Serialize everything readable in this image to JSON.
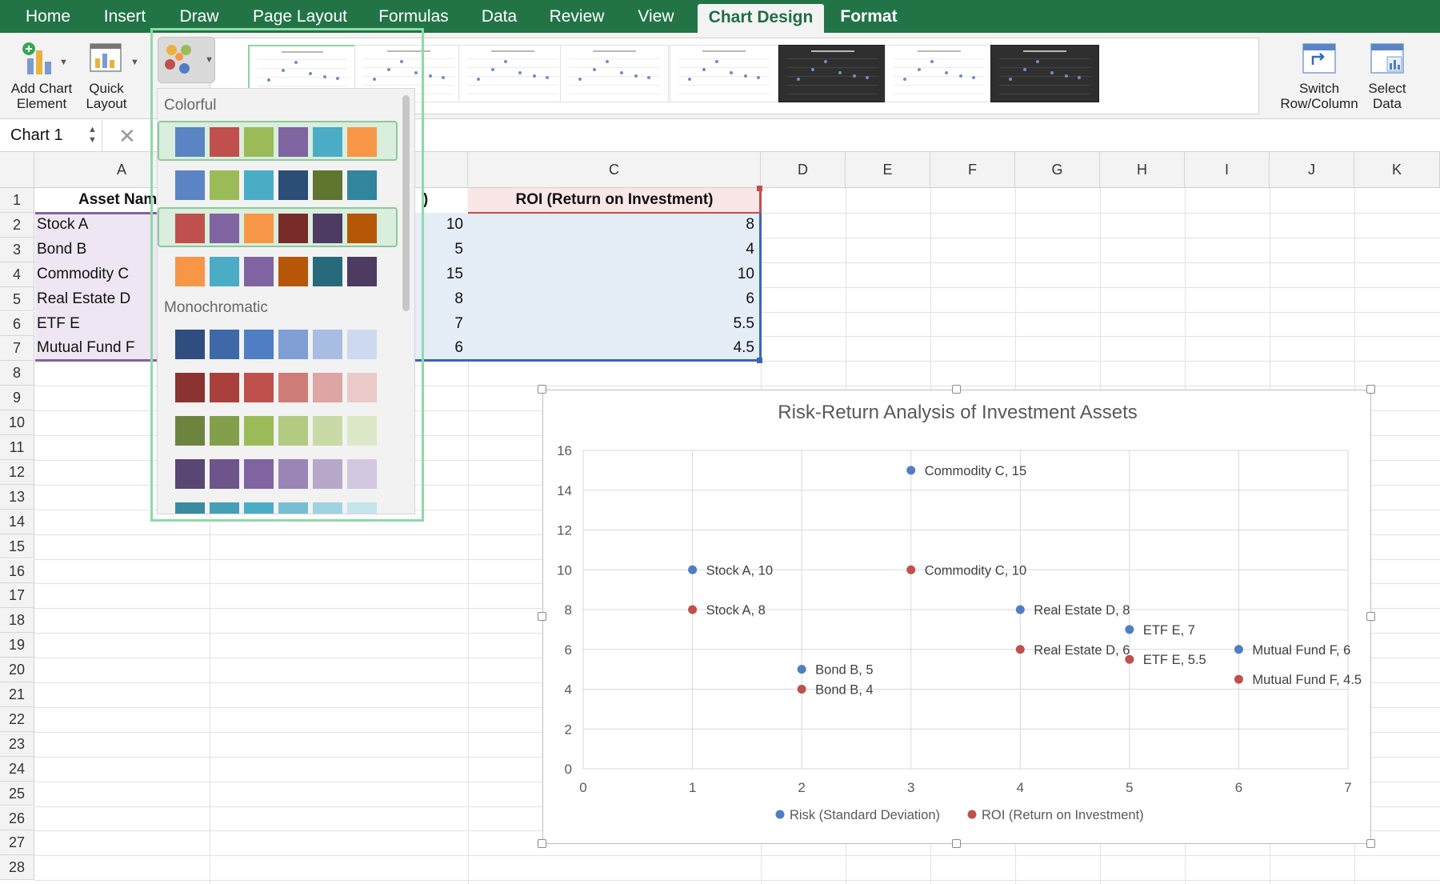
{
  "ribbon": {
    "tabs": [
      {
        "label": "Home",
        "left": 0,
        "width": 120
      },
      {
        "label": "Insert",
        "left": 120,
        "width": 72
      },
      {
        "label": "Draw",
        "left": 211,
        "width": 76
      },
      {
        "label": "Page Layout",
        "left": 305,
        "width": 140
      },
      {
        "label": "Formulas",
        "left": 466,
        "width": 102
      },
      {
        "label": "Data",
        "left": 592,
        "width": 64
      },
      {
        "label": "Review",
        "left": 680,
        "width": 82
      },
      {
        "label": "View",
        "left": 785,
        "width": 70
      }
    ],
    "active_tab": "Chart Design",
    "format_tab": "Format",
    "add_chart_element": "Add Chart Element",
    "quick_layout": "Quick Layout",
    "switch_row_column": "Switch Row/Column",
    "select_data": "Select Data"
  },
  "formula_bar": {
    "name_box": "Chart 1",
    "cancel": "✕"
  },
  "sheet": {
    "columns": [
      "A",
      "C",
      "D",
      "E",
      "F",
      "G",
      "H",
      "I",
      "J",
      "K"
    ],
    "rows": [
      "1",
      "2",
      "3",
      "4",
      "5",
      "6",
      "7",
      "8",
      "9",
      "10",
      "11",
      "12",
      "13",
      "14",
      "15",
      "16",
      "17",
      "18",
      "19",
      "20",
      "21",
      "22",
      "23",
      "24",
      "25",
      "26",
      "27",
      "28"
    ],
    "header_a": "Asset Nam",
    "header_b_partial": ")",
    "header_c": "ROI (Return on Investment)",
    "asset_names": [
      "Stock A",
      "Bond B",
      "Commodity C",
      "Real Estate D",
      "ETF E",
      "Mutual Fund F"
    ],
    "risk_values": [
      "10",
      "5",
      "15",
      "8",
      "7",
      "6"
    ],
    "roi_values": [
      "8",
      "4",
      "10",
      "6",
      "5.5",
      "4.5"
    ]
  },
  "color_menu": {
    "colorful_label": "Colorful",
    "monochromatic_label": "Monochromatic",
    "colorful": [
      [
        "#5b84c4",
        "#c0504d",
        "#9bbb59",
        "#8064a2",
        "#4bacc6",
        "#f79646"
      ],
      [
        "#5b84c4",
        "#9bbb59",
        "#4bacc6",
        "#2c4d75",
        "#5f7530",
        "#31859c"
      ],
      [
        "#c0504d",
        "#8064a2",
        "#f79646",
        "#772c2a",
        "#4d3b62",
        "#b65708"
      ],
      [
        "#f79646",
        "#4bacc6",
        "#8064a2",
        "#b65708",
        "#276a7c",
        "#4d3b62"
      ]
    ],
    "mono": [
      [
        "#2f4e7f",
        "#3e68a8",
        "#4f7ec4",
        "#7f9fd5",
        "#a9bde3",
        "#cdd9ee"
      ],
      [
        "#8b3330",
        "#a9403c",
        "#c0504d",
        "#cf7c79",
        "#dda5a3",
        "#ebcac9"
      ],
      [
        "#6d843e",
        "#849f4b",
        "#9bbb59",
        "#b2cb80",
        "#c9daa7",
        "#dde8c9"
      ],
      [
        "#5a4673",
        "#6d558c",
        "#8064a2",
        "#9b85b6",
        "#b7a8ca",
        "#d2c9df"
      ],
      [
        "#3b8ba0",
        "#469fb7",
        "#4bacc6",
        "#76bfd3",
        "#a1d2e0",
        "#c6e4ec"
      ]
    ],
    "highlighted_rows": [
      0,
      2
    ]
  },
  "colors": {
    "risk": "#4f7ec4",
    "roi": "#c0504d",
    "ribbon": "#227447"
  },
  "chart_data": {
    "type": "scatter",
    "title": "Risk-Return Analysis of Investment Assets",
    "xlim": [
      0,
      7
    ],
    "ylim": [
      0,
      16
    ],
    "x_ticks": [
      "0",
      "1",
      "2",
      "3",
      "4",
      "5",
      "6",
      "7"
    ],
    "y_ticks": [
      "0",
      "2",
      "4",
      "6",
      "8",
      "10",
      "12",
      "14",
      "16"
    ],
    "grid": true,
    "legend": "bottom",
    "series": [
      {
        "name": "Risk (Standard Deviation)",
        "color": "#4f7ec4",
        "points": [
          {
            "x": 1,
            "y": 10,
            "label": "Stock A, 10"
          },
          {
            "x": 2,
            "y": 5,
            "label": "Bond B, 5"
          },
          {
            "x": 3,
            "y": 15,
            "label": "Commodity C, 15"
          },
          {
            "x": 4,
            "y": 8,
            "label": "Real Estate D, 8"
          },
          {
            "x": 5,
            "y": 7,
            "label": "ETF E, 7"
          },
          {
            "x": 6,
            "y": 6,
            "label": "Mutual Fund F, 6"
          }
        ]
      },
      {
        "name": "ROI (Return on Investment)",
        "color": "#c0504d",
        "points": [
          {
            "x": 1,
            "y": 8,
            "label": "Stock A, 8"
          },
          {
            "x": 2,
            "y": 4,
            "label": "Bond B, 4"
          },
          {
            "x": 3,
            "y": 10,
            "label": "Commodity C, 10"
          },
          {
            "x": 4,
            "y": 6,
            "label": "Real Estate D, 6"
          },
          {
            "x": 5,
            "y": 5.5,
            "label": "ETF E, 5.5"
          },
          {
            "x": 6,
            "y": 4.5,
            "label": "Mutual Fund F, 4.5"
          }
        ]
      }
    ]
  }
}
